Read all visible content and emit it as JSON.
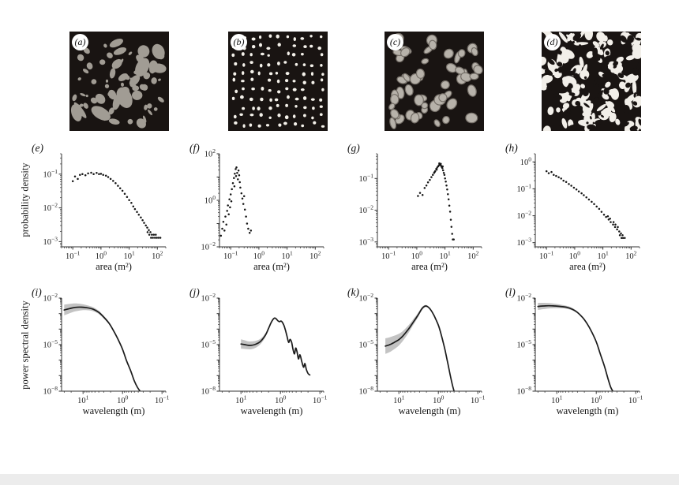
{
  "top_panels": [
    {
      "label": "(a)",
      "pattern": "patches",
      "bg": "#191412",
      "fg": "#a19c94"
    },
    {
      "label": "(b)",
      "pattern": "dots",
      "bg": "#191412",
      "fg": "#f4f1ea"
    },
    {
      "label": "(c)",
      "pattern": "spots",
      "bg": "#191412",
      "fg": "#b7b2aa",
      "edge": "#756f68"
    },
    {
      "label": "(d)",
      "pattern": "maze",
      "bg": "#191412",
      "fg": "#f2efe9"
    }
  ],
  "chart_data": [
    {
      "panel": "(e)",
      "type": "scatter",
      "axes_scale": "log-log",
      "xlabel": "area (m²)",
      "ylabel": "probability density",
      "xlim": [
        0.04,
        200
      ],
      "ylim": [
        0.0007,
        0.4
      ],
      "xticks": [
        0.1,
        1,
        10,
        100
      ],
      "yticks": [
        0.1,
        0.01,
        0.001
      ],
      "points": [
        [
          0.1,
          0.062
        ],
        [
          0.12,
          0.085
        ],
        [
          0.15,
          0.072
        ],
        [
          0.18,
          0.095
        ],
        [
          0.22,
          0.1
        ],
        [
          0.28,
          0.092
        ],
        [
          0.35,
          0.105
        ],
        [
          0.45,
          0.11
        ],
        [
          0.55,
          0.1
        ],
        [
          0.7,
          0.108
        ],
        [
          0.85,
          0.1
        ],
        [
          1.0,
          0.102
        ],
        [
          1.2,
          0.095
        ],
        [
          1.5,
          0.09
        ],
        [
          1.8,
          0.082
        ],
        [
          2.2,
          0.072
        ],
        [
          2.7,
          0.063
        ],
        [
          3.3,
          0.054
        ],
        [
          4.0,
          0.045
        ],
        [
          4.8,
          0.038
        ],
        [
          5.8,
          0.032
        ],
        [
          7.0,
          0.026
        ],
        [
          8.4,
          0.021
        ],
        [
          10,
          0.017
        ],
        [
          12,
          0.014
        ],
        [
          14,
          0.011
        ],
        [
          16,
          0.0092
        ],
        [
          19,
          0.0076
        ],
        [
          22,
          0.0063
        ],
        [
          26,
          0.0052
        ],
        [
          30,
          0.0043
        ],
        [
          34,
          0.0036
        ],
        [
          39,
          0.003
        ],
        [
          44,
          0.0026
        ],
        [
          50,
          0.0022
        ],
        [
          57,
          0.0019
        ],
        [
          64,
          0.0016
        ],
        [
          45,
          0.0019
        ],
        [
          52,
          0.0016
        ],
        [
          60,
          0.0013
        ],
        [
          70,
          0.0013
        ],
        [
          82,
          0.0013
        ],
        [
          95,
          0.0013
        ],
        [
          110,
          0.0013
        ],
        [
          128,
          0.0013
        ],
        [
          75,
          0.0016
        ],
        [
          88,
          0.0016
        ]
      ]
    },
    {
      "panel": "(f)",
      "type": "scatter",
      "axes_scale": "log-log",
      "xlabel": "area (m²)",
      "ylabel": "",
      "xlim": [
        0.04,
        200
      ],
      "ylim": [
        0.01,
        100
      ],
      "xticks": [
        0.1,
        1,
        10,
        100
      ],
      "yticks": [
        100,
        1,
        0.01
      ],
      "points": [
        [
          0.045,
          0.03
        ],
        [
          0.05,
          0.06
        ],
        [
          0.055,
          0.12
        ],
        [
          0.06,
          0.05
        ],
        [
          0.065,
          0.2
        ],
        [
          0.07,
          0.09
        ],
        [
          0.075,
          0.35
        ],
        [
          0.08,
          0.6
        ],
        [
          0.085,
          0.25
        ],
        [
          0.09,
          1.1
        ],
        [
          0.095,
          0.5
        ],
        [
          0.1,
          1.8
        ],
        [
          0.105,
          0.9
        ],
        [
          0.11,
          3
        ],
        [
          0.12,
          5.5
        ],
        [
          0.13,
          9
        ],
        [
          0.135,
          4
        ],
        [
          0.14,
          14
        ],
        [
          0.15,
          22
        ],
        [
          0.155,
          11
        ],
        [
          0.16,
          26
        ],
        [
          0.17,
          15
        ],
        [
          0.18,
          8
        ],
        [
          0.19,
          19
        ],
        [
          0.2,
          12
        ],
        [
          0.21,
          6
        ],
        [
          0.22,
          3.5
        ],
        [
          0.24,
          2
        ],
        [
          0.26,
          1.2
        ],
        [
          0.28,
          0.7
        ],
        [
          0.3,
          1.5
        ],
        [
          0.32,
          0.4
        ],
        [
          0.35,
          0.2
        ],
        [
          0.38,
          0.1
        ],
        [
          0.42,
          0.06
        ],
        [
          0.47,
          0.04
        ],
        [
          0.52,
          0.05
        ]
      ]
    },
    {
      "panel": "(g)",
      "type": "scatter",
      "axes_scale": "log-log",
      "xlabel": "area (m²)",
      "ylabel": "",
      "xlim": [
        0.04,
        200
      ],
      "ylim": [
        0.0007,
        0.6
      ],
      "xticks": [
        0.1,
        1,
        10,
        100
      ],
      "yticks": [
        0.1,
        0.01,
        0.001
      ],
      "points": [
        [
          1.1,
          0.028
        ],
        [
          1.3,
          0.035
        ],
        [
          1.6,
          0.03
        ],
        [
          1.9,
          0.05
        ],
        [
          2.2,
          0.06
        ],
        [
          2.5,
          0.075
        ],
        [
          2.9,
          0.09
        ],
        [
          3.3,
          0.11
        ],
        [
          3.7,
          0.13
        ],
        [
          4.1,
          0.15
        ],
        [
          4.5,
          0.17
        ],
        [
          4.9,
          0.2
        ],
        [
          5.3,
          0.22
        ],
        [
          5.7,
          0.24
        ],
        [
          6.1,
          0.26
        ],
        [
          6.5,
          0.28
        ],
        [
          6.9,
          0.27
        ],
        [
          7.3,
          0.25
        ],
        [
          7.7,
          0.23
        ],
        [
          8.1,
          0.21
        ],
        [
          8.6,
          0.18
        ],
        [
          9.1,
          0.15
        ],
        [
          9.6,
          0.13
        ],
        [
          10.1,
          0.1
        ],
        [
          10.7,
          0.08
        ],
        [
          11.3,
          0.06
        ],
        [
          12,
          0.045
        ],
        [
          12.7,
          0.032
        ],
        [
          13.5,
          0.022
        ],
        [
          14.3,
          0.014
        ],
        [
          15.2,
          0.009
        ],
        [
          16.1,
          0.005
        ],
        [
          17,
          0.003
        ],
        [
          18,
          0.0018
        ],
        [
          19,
          0.0012
        ],
        [
          20.5,
          0.0012
        ],
        [
          5.1,
          0.19
        ],
        [
          6.3,
          0.3
        ],
        [
          7.1,
          0.29
        ],
        [
          4.3,
          0.16
        ],
        [
          8.3,
          0.24
        ]
      ]
    },
    {
      "panel": "(h)",
      "type": "scatter",
      "axes_scale": "log-log",
      "xlabel": "area (m²)",
      "ylabel": "",
      "xlim": [
        0.04,
        200
      ],
      "ylim": [
        0.0007,
        2.0
      ],
      "xticks": [
        0.1,
        1,
        10,
        100
      ],
      "yticks": [
        1,
        0.1,
        0.01,
        0.001
      ],
      "points": [
        [
          0.1,
          0.45
        ],
        [
          0.12,
          0.38
        ],
        [
          0.15,
          0.42
        ],
        [
          0.18,
          0.33
        ],
        [
          0.22,
          0.3
        ],
        [
          0.27,
          0.27
        ],
        [
          0.33,
          0.24
        ],
        [
          0.4,
          0.2
        ],
        [
          0.5,
          0.18
        ],
        [
          0.62,
          0.15
        ],
        [
          0.76,
          0.13
        ],
        [
          0.94,
          0.11
        ],
        [
          1.15,
          0.095
        ],
        [
          1.4,
          0.08
        ],
        [
          1.75,
          0.068
        ],
        [
          2.1,
          0.058
        ],
        [
          2.6,
          0.048
        ],
        [
          3.2,
          0.04
        ],
        [
          4.0,
          0.033
        ],
        [
          4.9,
          0.027
        ],
        [
          6.0,
          0.022
        ],
        [
          7.4,
          0.018
        ],
        [
          9.0,
          0.014
        ],
        [
          11,
          0.011
        ],
        [
          13,
          0.009
        ],
        [
          16,
          0.0072
        ],
        [
          19,
          0.0058
        ],
        [
          23,
          0.0047
        ],
        [
          27,
          0.0038
        ],
        [
          32,
          0.0031
        ],
        [
          38,
          0.0026
        ],
        [
          44,
          0.0022
        ],
        [
          50,
          0.0019
        ],
        [
          28,
          0.0047
        ],
        [
          34,
          0.0038
        ],
        [
          24,
          0.0058
        ],
        [
          40,
          0.0019
        ],
        [
          46,
          0.0015
        ],
        [
          52,
          0.0015
        ],
        [
          60,
          0.0015
        ],
        [
          15,
          0.0095
        ],
        [
          18,
          0.0078
        ]
      ]
    },
    {
      "panel": "(i)",
      "type": "line",
      "axes_scale": "log-log",
      "x_reversed": true,
      "xlabel": "wavelength (m)",
      "ylabel": "power spectral density",
      "xlim": [
        35,
        0.08
      ],
      "ylim": [
        1e-08,
        0.01
      ],
      "xticks": [
        10,
        1,
        0.1
      ],
      "yticks": [
        0.01,
        1e-05,
        1e-08
      ],
      "line": [
        [
          30,
          0.0017
        ],
        [
          22,
          0.0021
        ],
        [
          16,
          0.0025
        ],
        [
          11,
          0.0026
        ],
        [
          8,
          0.0024
        ],
        [
          5.5,
          0.0019
        ],
        [
          4,
          0.0012
        ],
        [
          3,
          0.0006
        ],
        [
          2.2,
          0.00024
        ],
        [
          1.7,
          8e-05
        ],
        [
          1.3,
          2.2e-05
        ],
        [
          1.0,
          5e-06
        ],
        [
          0.8,
          1e-06
        ],
        [
          0.62,
          2e-07
        ],
        [
          0.5,
          4.5e-08
        ],
        [
          0.42,
          1.8e-08
        ],
        [
          0.36,
          1e-08
        ]
      ],
      "band_mult": [
        2.2,
        2.0,
        1.8,
        1.6,
        1.45,
        1.35,
        1.28,
        1.22,
        1.18,
        1.14,
        1.1,
        1.08,
        1.06,
        1.05,
        1.04,
        1.03,
        1.02
      ]
    },
    {
      "panel": "(j)",
      "type": "line",
      "axes_scale": "log-log",
      "x_reversed": true,
      "xlabel": "wavelength (m)",
      "ylabel": "",
      "xlim": [
        35,
        0.08
      ],
      "ylim": [
        1e-08,
        0.01
      ],
      "xticks": [
        10,
        1,
        0.1
      ],
      "yticks": [
        0.01,
        1e-05,
        1e-08
      ],
      "line": [
        [
          10,
          1.1e-05
        ],
        [
          8,
          1e-05
        ],
        [
          6.5,
          9e-06
        ],
        [
          5.5,
          9e-06
        ],
        [
          4.5,
          1e-05
        ],
        [
          3.8,
          1.2e-05
        ],
        [
          3.2,
          1.6e-05
        ],
        [
          2.7,
          2.6e-05
        ],
        [
          2.3,
          5e-05
        ],
        [
          2.0,
          0.00011
        ],
        [
          1.75,
          0.00024
        ],
        [
          1.55,
          0.00042
        ],
        [
          1.4,
          0.00052
        ],
        [
          1.28,
          0.00046
        ],
        [
          1.15,
          0.00034
        ],
        [
          1.05,
          0.0003
        ],
        [
          0.97,
          0.00033
        ],
        [
          0.9,
          0.00028
        ],
        [
          0.82,
          0.00018
        ],
        [
          0.75,
          9e-05
        ],
        [
          0.68,
          3.5e-05
        ],
        [
          0.62,
          1.4e-05
        ],
        [
          0.57,
          2.2e-05
        ],
        [
          0.52,
          1.4e-05
        ],
        [
          0.48,
          5e-06
        ],
        [
          0.44,
          2.5e-06
        ],
        [
          0.41,
          6e-06
        ],
        [
          0.38,
          3.5e-06
        ],
        [
          0.35,
          1.2e-06
        ],
        [
          0.32,
          2.2e-06
        ],
        [
          0.29,
          9e-07
        ],
        [
          0.26,
          3.5e-07
        ],
        [
          0.24,
          6e-07
        ],
        [
          0.22,
          2.5e-07
        ],
        [
          0.2,
          1.4e-07
        ],
        [
          0.18,
          1.1e-07
        ]
      ],
      "band_mult": [
        2.0,
        1.9,
        1.8,
        1.8,
        1.7,
        1.6,
        1.5,
        1.4,
        1.3,
        1.25,
        1.2,
        1.18,
        1.15,
        1.13,
        1.12,
        1.1,
        1.1,
        1.1,
        1.08,
        1.08,
        1.08,
        1.06,
        1.06,
        1.06,
        1.05,
        1.05,
        1.05,
        1.05,
        1.04,
        1.04,
        1.04,
        1.03,
        1.03,
        1.03,
        1.03,
        1.02
      ]
    },
    {
      "panel": "(k)",
      "type": "line",
      "axes_scale": "log-log",
      "x_reversed": true,
      "xlabel": "wavelength (m)",
      "ylabel": "",
      "xlim": [
        35,
        0.08
      ],
      "ylim": [
        1e-08,
        0.01
      ],
      "xticks": [
        10,
        1,
        0.1
      ],
      "yticks": [
        0.01,
        1e-05,
        1e-08
      ],
      "line": [
        [
          22,
          8e-06
        ],
        [
          17,
          1e-05
        ],
        [
          13,
          1.4e-05
        ],
        [
          10,
          2.1e-05
        ],
        [
          8,
          3.5e-05
        ],
        [
          6.5,
          6.5e-05
        ],
        [
          5.3,
          0.00013
        ],
        [
          4.4,
          0.00026
        ],
        [
          3.7,
          0.0005
        ],
        [
          3.1,
          0.001
        ],
        [
          2.7,
          0.0018
        ],
        [
          2.4,
          0.0026
        ],
        [
          2.1,
          0.0031
        ],
        [
          1.9,
          0.0029
        ],
        [
          1.7,
          0.0023
        ],
        [
          1.5,
          0.0015
        ],
        [
          1.3,
          0.0008
        ],
        [
          1.15,
          0.00042
        ],
        [
          1.0,
          0.00018
        ],
        [
          0.88,
          6.5e-05
        ],
        [
          0.77,
          1.8e-05
        ],
        [
          0.67,
          4e-06
        ],
        [
          0.58,
          7e-07
        ],
        [
          0.5,
          1.1e-07
        ],
        [
          0.44,
          2.5e-08
        ],
        [
          0.4,
          1e-08
        ]
      ],
      "band_mult": [
        3.2,
        3.0,
        2.7,
        2.4,
        2.1,
        1.9,
        1.7,
        1.55,
        1.45,
        1.35,
        1.28,
        1.22,
        1.18,
        1.15,
        1.12,
        1.1,
        1.09,
        1.08,
        1.07,
        1.06,
        1.05,
        1.05,
        1.04,
        1.03,
        1.03,
        1.02
      ]
    },
    {
      "panel": "(l)",
      "type": "line",
      "axes_scale": "log-log",
      "x_reversed": true,
      "xlabel": "wavelength (m)",
      "ylabel": "",
      "xlim": [
        35,
        0.08
      ],
      "ylim": [
        1e-08,
        0.01
      ],
      "xticks": [
        10,
        1,
        0.1
      ],
      "yticks": [
        0.01,
        1e-05,
        1e-08
      ],
      "line": [
        [
          30,
          0.0029
        ],
        [
          22,
          0.0031
        ],
        [
          16,
          0.0032
        ],
        [
          11,
          0.0031
        ],
        [
          8,
          0.0029
        ],
        [
          5.5,
          0.0025
        ],
        [
          4,
          0.0019
        ],
        [
          3,
          0.0012
        ],
        [
          2.2,
          0.00055
        ],
        [
          1.7,
          0.00022
        ],
        [
          1.3,
          6.5e-05
        ],
        [
          1.0,
          1.5e-05
        ],
        [
          0.8,
          2.8e-06
        ],
        [
          0.62,
          4e-07
        ],
        [
          0.5,
          6e-08
        ],
        [
          0.43,
          1.8e-08
        ],
        [
          0.38,
          1e-08
        ]
      ],
      "band_mult": [
        1.7,
        1.6,
        1.5,
        1.4,
        1.32,
        1.25,
        1.2,
        1.15,
        1.12,
        1.09,
        1.07,
        1.06,
        1.05,
        1.04,
        1.03,
        1.02,
        1.02
      ]
    }
  ]
}
